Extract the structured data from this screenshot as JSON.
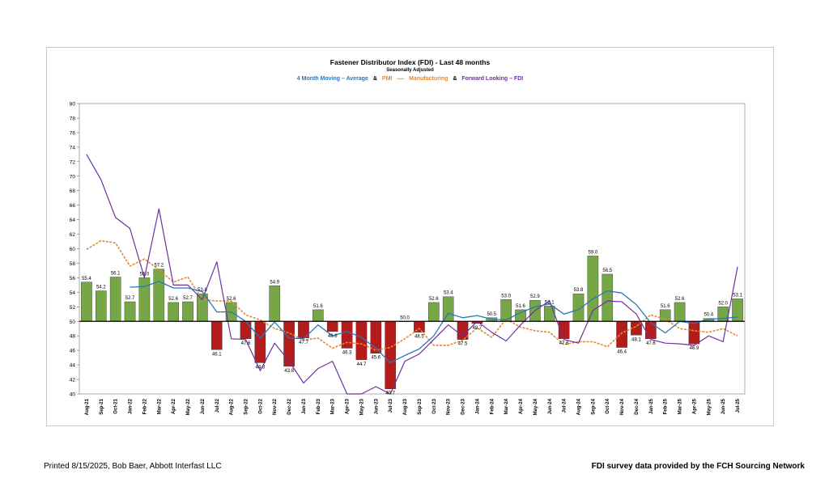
{
  "chart_data": {
    "type": "bar",
    "title": "Fastener Distributor Index (FDI) - Last 48 months",
    "subtitle": "Seasonally Adjusted",
    "legend": {
      "ma": "4 Month Moving – Average",
      "amp1": "&",
      "pmi": "PMI",
      "dots": "▪▪▪▪▪",
      "pmi_suffix": "Manufacturing",
      "amp2": "&",
      "fli": "Forward Looking – FDI"
    },
    "colors": {
      "bar_up": "#77a646",
      "bar_down": "#b41c1c",
      "ma": "#2e75b6",
      "pmi": "#e08a3a",
      "fli": "#7030a0",
      "baseline": "#000000"
    },
    "ylim": [
      40,
      80
    ],
    "ytick_step": 2,
    "baseline": 50,
    "categories": [
      "Aug-21",
      "Sep-21",
      "Oct-21",
      "Jan-22",
      "Feb-22",
      "Mar-22",
      "Apr-22",
      "May-22",
      "Jun-22",
      "Jul-22",
      "Aug-22",
      "Sep-22",
      "Oct-22",
      "Nov-22",
      "Dec-22",
      "Jan-23",
      "Feb-23",
      "Mar-23",
      "Apr-23",
      "May-23",
      "Jun-23",
      "Jul-23",
      "Aug-23",
      "Sep-23",
      "Oct-23",
      "Nov-23",
      "Dec-23",
      "Jan-24",
      "Feb-24",
      "Mar-24",
      "Apr-24",
      "May-24",
      "Jun-24",
      "Jul-24",
      "Aug-24",
      "Sep-24",
      "Oct-24",
      "Nov-24",
      "Dec-24",
      "Jan-25",
      "Feb-25",
      "Mar-25",
      "Apr-25",
      "May-25",
      "Jun-25",
      "Jul-25"
    ],
    "fdi": [
      55.4,
      54.2,
      56.1,
      52.7,
      56.0,
      57.2,
      52.6,
      52.7,
      53.8,
      46.1,
      52.6,
      47.6,
      44.3,
      54.9,
      43.8,
      47.7,
      51.6,
      48.6,
      46.3,
      44.7,
      45.6,
      40.7,
      50.0,
      48.5,
      52.6,
      53.4,
      47.5,
      49.7,
      50.5,
      53.0,
      51.6,
      52.9,
      52.1,
      47.6,
      53.8,
      59.0,
      56.5,
      46.4,
      48.1,
      47.6,
      51.6,
      52.6,
      46.9,
      50.4,
      52.0,
      53.1
    ],
    "fdi_labels": [
      "55.4",
      "54.2",
      "56.1",
      "52.7",
      "56.0",
      "57.2",
      "52.6",
      "52.7",
      "53.8",
      "46.1",
      "52.6",
      "47.6",
      "44.3",
      "54.9",
      "43.8",
      "47.7",
      "51.6",
      "48.6",
      "46.3",
      "44.7",
      "45.6",
      "40.7",
      "50.0",
      "48.5",
      "52.6",
      "53.4",
      "47.5",
      "49.7",
      "50.5",
      "53.0",
      "51.6",
      "52.9",
      "52.1",
      "47.6",
      "53.8",
      "59.0",
      "56.5",
      "46.4",
      "48.1",
      "47.6",
      "51.6",
      "52.6",
      "46.9",
      "50.4",
      "52.0",
      "53.1"
    ],
    "moving_average": [
      null,
      null,
      null,
      54.7,
      54.8,
      55.5,
      54.6,
      54.6,
      54.1,
      51.3,
      51.3,
      50.0,
      47.7,
      49.9,
      47.7,
      47.6,
      49.5,
      48.0,
      48.6,
      47.8,
      46.3,
      44.3,
      45.3,
      46.2,
      48.0,
      51.1,
      50.5,
      50.8,
      50.3,
      50.2,
      51.2,
      52.0,
      52.4,
      51.0,
      51.6,
      53.1,
      54.2,
      53.9,
      52.3,
      49.8,
      48.4,
      50.0,
      49.7,
      50.3,
      50.4,
      50.6
    ],
    "pmi": [
      59.9,
      61.1,
      60.8,
      57.6,
      58.6,
      57.1,
      55.4,
      56.1,
      53.0,
      52.8,
      52.8,
      50.9,
      50.2,
      49.0,
      48.4,
      47.4,
      47.7,
      46.3,
      47.1,
      46.9,
      46.0,
      46.4,
      47.6,
      49.0,
      46.7,
      46.7,
      47.4,
      49.1,
      47.8,
      50.3,
      49.2,
      48.7,
      48.5,
      46.8,
      47.2,
      47.2,
      46.5,
      48.4,
      49.3,
      50.9,
      50.3,
      49.0,
      48.7,
      48.5,
      49.0,
      48.0
    ],
    "forward_looking": [
      73.0,
      69.5,
      64.3,
      62.8,
      56.0,
      65.5,
      55.0,
      55.0,
      53.0,
      58.2,
      47.6,
      47.5,
      43.2,
      47.0,
      44.5,
      41.5,
      43.5,
      44.5,
      36.5,
      38.0,
      41.0,
      37.0,
      44.5,
      45.5,
      47.5,
      49.5,
      48.0,
      50.0,
      48.5,
      47.3,
      49.5,
      51.5,
      52.8,
      47.5,
      47.0,
      51.5,
      52.8,
      52.7,
      51.0,
      47.5,
      47.0,
      46.9,
      46.7,
      48.0,
      47.2,
      57.5
    ]
  },
  "footer": {
    "left": "Printed 8/15/2025, Bob Baer, Abbott Interfast LLC",
    "right": "FDI survey data provided by the FCH Sourcing Network"
  }
}
